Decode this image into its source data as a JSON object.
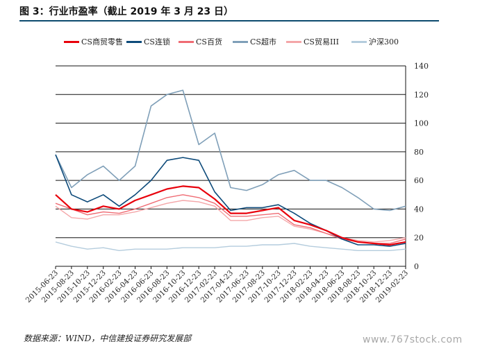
{
  "figure": {
    "title": "图 3：行业市盈率（截止 2019 年 3 月 23 日）",
    "source": "数据来源：WIND，中信建投证券研究发展部",
    "watermark": "www.767stock.com"
  },
  "colors": {
    "title_rule": "#0c4a6e"
  },
  "chart_data": {
    "type": "line",
    "title": "",
    "xlabel": "",
    "ylabel": "",
    "ylim": [
      0,
      140
    ],
    "yticks": [
      0,
      20,
      40,
      60,
      80,
      100,
      120,
      140
    ],
    "y_axis_side": "right",
    "grid": "horizontal",
    "legend_position": "top",
    "x": [
      "2015-06-23",
      "2015-08-23",
      "2015-10-23",
      "2015-12-23",
      "2016-02-23",
      "2016-04-23",
      "2016-06-23",
      "2016-08-23",
      "2016-10-23",
      "2016-12-23",
      "2017-02-23",
      "2017-04-23",
      "2017-06-23",
      "2017-08-23",
      "2017-10-23",
      "2017-12-23",
      "2018-02-23",
      "2018-04-23",
      "2018-06-23",
      "2018-08-23",
      "2018-10-23",
      "2018-12-23",
      "2019-02-23"
    ],
    "series": [
      {
        "name": "CS商贸零售",
        "color": "#e8000b",
        "width": 2.2,
        "values": [
          50,
          40,
          38,
          42,
          40,
          46,
          50,
          54,
          56,
          55,
          47,
          37,
          37,
          39,
          41,
          32,
          29,
          25,
          20,
          17,
          16,
          15,
          17
        ]
      },
      {
        "name": "CS连锁",
        "color": "#0d4a7a",
        "width": 1.6,
        "values": [
          78,
          50,
          45,
          50,
          42,
          50,
          60,
          74,
          76,
          74,
          52,
          39,
          41,
          41,
          43,
          37,
          30,
          25,
          19,
          15,
          15,
          14,
          16
        ]
      },
      {
        "name": "CS百货",
        "color": "#ef6b73",
        "width": 1.4,
        "values": [
          44,
          40,
          36,
          38,
          37,
          40,
          44,
          48,
          50,
          48,
          44,
          35,
          35,
          36,
          37,
          29,
          27,
          23,
          19,
          17,
          16,
          16,
          19
        ]
      },
      {
        "name": "CS超市",
        "color": "#7f9fb8",
        "width": 1.6,
        "values": [
          78,
          55,
          64,
          70,
          60,
          70,
          112,
          120,
          123,
          85,
          93,
          55,
          53,
          57,
          64,
          67,
          60,
          60,
          55,
          48,
          40,
          39,
          42
        ]
      },
      {
        "name": "CS贸易III",
        "color": "#f4a6a8",
        "width": 1.4,
        "values": [
          42,
          34,
          33,
          36,
          36,
          38,
          41,
          44,
          46,
          45,
          42,
          32,
          32,
          34,
          35,
          28,
          26,
          23,
          20,
          18,
          17,
          18,
          20
        ]
      },
      {
        "name": "沪深300",
        "color": "#b4ccdd",
        "width": 1.4,
        "values": [
          17,
          14,
          12,
          13,
          11,
          12,
          12,
          12,
          13,
          13,
          13,
          14,
          14,
          15,
          15,
          16,
          14,
          13,
          12,
          11,
          11,
          11,
          12
        ]
      }
    ]
  }
}
